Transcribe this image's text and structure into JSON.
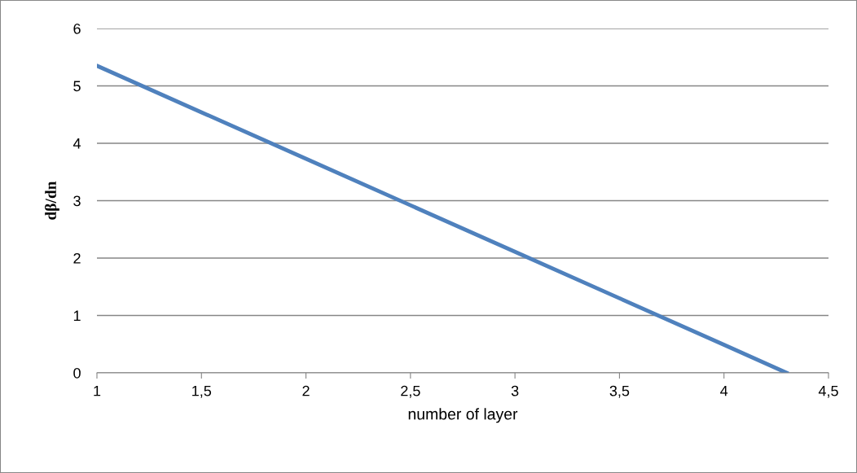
{
  "chart_data": {
    "type": "line",
    "xlabel": "number of layer",
    "ylabel": "dβ/dn",
    "series": [
      {
        "color": "#4f81bd",
        "x": [
          1,
          1.5,
          2,
          2.5,
          3,
          3.5,
          4,
          4.3
        ],
        "values": [
          5.35,
          4.54,
          3.73,
          2.92,
          2.11,
          1.3,
          0.49,
          0
        ]
      }
    ],
    "xlim": [
      1,
      4.5
    ],
    "xticks": [
      1,
      {
        "value": 1.5,
        "label": "1,5"
      },
      2,
      {
        "value": 2.5,
        "label": "2,5"
      },
      3,
      {
        "value": 3.5,
        "label": "3,5"
      },
      4,
      {
        "value": 4.5,
        "label": "4,5"
      }
    ],
    "ylim": [
      0,
      6
    ],
    "yticks": [
      0,
      1,
      2,
      3,
      4,
      5,
      6
    ],
    "grid": "y",
    "marker": "none",
    "line_style": "solid",
    "legend": false
  }
}
